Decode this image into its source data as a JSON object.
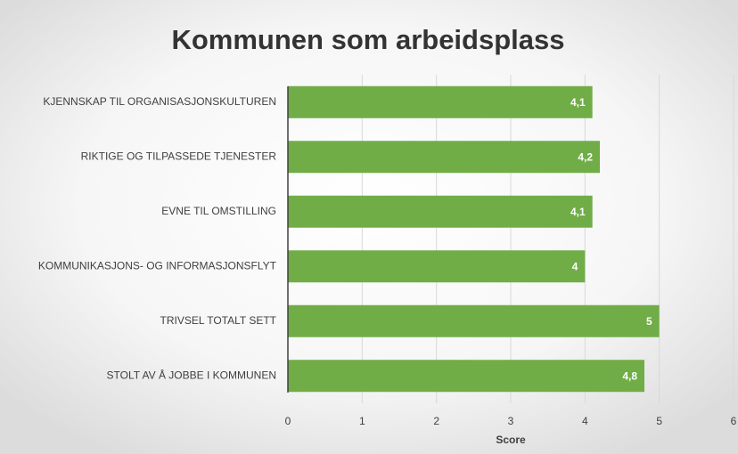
{
  "chart_data": {
    "type": "bar",
    "orientation": "horizontal",
    "title": "Kommunen som arbeidsplass",
    "categories": [
      "KJENNSKAP TIL ORGANISASJONSKULTUREN",
      "RIKTIGE OG TILPASSEDE TJENESTER",
      "EVNE TIL OMSTILLING",
      "KOMMUNIKASJONS- OG INFORMASJONSFLYT",
      "TRIVSEL TOTALT SETT",
      "STOLT AV Å JOBBE I KOMMUNEN"
    ],
    "values": [
      4.1,
      4.2,
      4.1,
      4,
      5,
      4.8
    ],
    "value_labels": [
      "4,1",
      "4,2",
      "4,1",
      "4",
      "5",
      "4,8"
    ],
    "color": "#70ad47",
    "x_label": "Score",
    "xlim": [
      0,
      6
    ],
    "xticks": [
      0,
      1,
      2,
      3,
      4,
      5,
      6
    ],
    "grid": true
  }
}
